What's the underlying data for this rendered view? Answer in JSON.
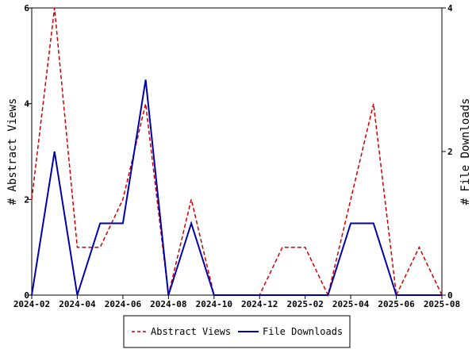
{
  "chart_data": {
    "type": "line",
    "title": "",
    "x_tick_labels": [
      "2024-02",
      "2024-04",
      "2024-06",
      "2024-08",
      "2024-10",
      "2024-12",
      "2025-02",
      "2025-04",
      "2025-06",
      "2025-08"
    ],
    "x": [
      "2024-02",
      "2024-03",
      "2024-04",
      "2024-05",
      "2024-06",
      "2024-07",
      "2024-08",
      "2024-09",
      "2024-10",
      "2024-11",
      "2024-12",
      "2025-01",
      "2025-02",
      "2025-03",
      "2025-04",
      "2025-05",
      "2025-06",
      "2025-07",
      "2025-08"
    ],
    "y_left": {
      "label": "# Abstract Views",
      "lim": [
        0,
        6
      ],
      "ticks": [
        0,
        2,
        4,
        6
      ]
    },
    "y_right": {
      "label": "# File Downloads",
      "lim": [
        0,
        4
      ],
      "ticks": [
        0,
        2,
        4
      ]
    },
    "series": [
      {
        "name": "Abstract Views",
        "axis": "left",
        "color": "#cc0000",
        "dash": true,
        "values": [
          2,
          6,
          1,
          1,
          2,
          4,
          0,
          2,
          0,
          0,
          0,
          1,
          1,
          0,
          2,
          4,
          0,
          1,
          0
        ]
      },
      {
        "name": "File Downloads",
        "axis": "right",
        "color": "#0000aa",
        "dash": false,
        "values": [
          0,
          2,
          0,
          1,
          1,
          3,
          0,
          1,
          0,
          0,
          0,
          0,
          0,
          0,
          1,
          1,
          0,
          0,
          0
        ]
      }
    ],
    "legend": "bottom-center",
    "grid": false
  }
}
